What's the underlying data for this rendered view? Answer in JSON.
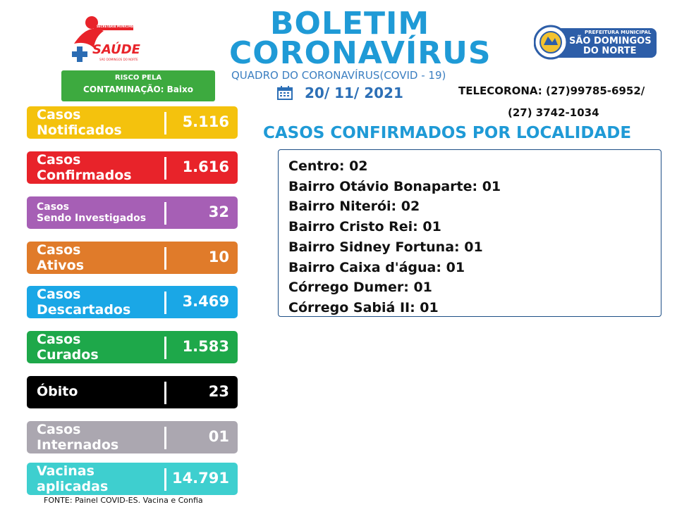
{
  "header": {
    "title_line1": "BOLETIM",
    "title_line2": "CORONAVÍRUS",
    "subtitle": "QUADRO DO CORONAVÍRUS(COVID - 19)",
    "date": "20/ 11/ 2021",
    "telecorona_line1": "TELECORONA: (27)99785-6952/",
    "telecorona_line2": "(27) 3742-1034"
  },
  "logos": {
    "saude_text": "SAÚDE",
    "saude_top_text": "SECRETARIA MUNICIPAL",
    "saude_bottom_text": "SÃO DOMINGOS DO NORTE",
    "prefeitura_small": "PREFEITURA MUNICIPAL",
    "prefeitura_line1": "SÃO DOMINGOS",
    "prefeitura_line2": "DO NORTE"
  },
  "risk": {
    "line1": "RISCO PELA",
    "line2": "CONTAMINAÇÃO: Baixo"
  },
  "stats": [
    {
      "label1": "Casos",
      "label2": "Notificados",
      "value": "5.116",
      "color": "#f4c20d"
    },
    {
      "label1": "Casos",
      "label2": "Confirmados",
      "value": "1.616",
      "color": "#e8232a"
    },
    {
      "label1": "Casos",
      "label2": "Sendo Investigados",
      "value": "32",
      "color": "#a65fb5"
    },
    {
      "label1": "Casos",
      "label2": "Ativos",
      "value": "10",
      "color": "#e07b2a"
    },
    {
      "label1": "Casos",
      "label2": "Descartados",
      "value": "3.469",
      "color": "#1aa7e6"
    },
    {
      "label1": "Casos",
      "label2": "Curados",
      "value": "1.583",
      "color": "#1ea84a"
    },
    {
      "label1": "Óbito",
      "label2": "",
      "value": "23",
      "color": "#000000"
    },
    {
      "label1": "Casos",
      "label2": "Internados",
      "value": "01",
      "color": "#aba7b0"
    },
    {
      "label1": "Vacinas",
      "label2": "aplicadas",
      "value": "14.791",
      "color": "#3ecfcf"
    }
  ],
  "localidade": {
    "title": "CASOS CONFIRMADOS POR LOCALIDADE",
    "items": [
      "Centro: 02",
      "Bairro Otávio Bonaparte: 01",
      "Bairro Niterói: 02",
      "Bairro Cristo Rei: 01",
      "Bairro Sidney Fortuna: 01",
      "Bairro Caixa  d'água: 01",
      "Córrego Dumer: 01",
      "Córrego Sabiá II: 01"
    ]
  },
  "source": "FONTE: Painel COVID-ES. Vacina e Confia"
}
